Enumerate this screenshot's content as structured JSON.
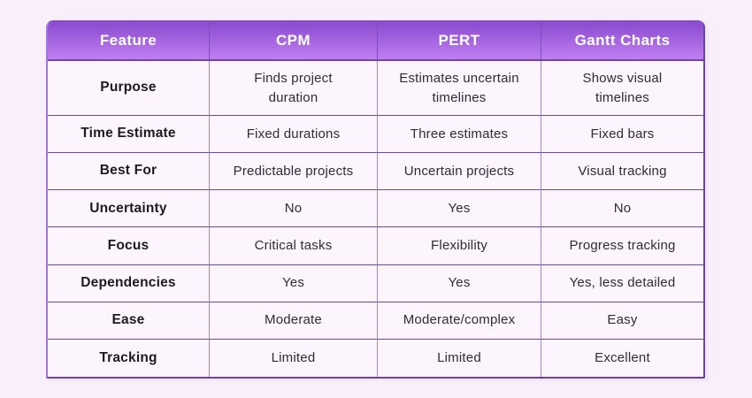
{
  "chart_data": {
    "type": "table",
    "columns": [
      "Feature",
      "CPM",
      "PERT",
      "Gantt Charts"
    ],
    "rows": [
      {
        "feature": "Purpose",
        "cpm": "Finds project\nduration",
        "pert": "Estimates uncertain\ntimelines",
        "gantt": "Shows visual\ntimelines"
      },
      {
        "feature": "Time Estimate",
        "cpm": "Fixed durations",
        "pert": "Three estimates",
        "gantt": "Fixed bars"
      },
      {
        "feature": "Best For",
        "cpm": "Predictable projects",
        "pert": "Uncertain projects",
        "gantt": "Visual tracking"
      },
      {
        "feature": "Uncertainty",
        "cpm": "No",
        "pert": "Yes",
        "gantt": "No"
      },
      {
        "feature": "Focus",
        "cpm": "Critical tasks",
        "pert": "Flexibility",
        "gantt": "Progress tracking"
      },
      {
        "feature": "Dependencies",
        "cpm": "Yes",
        "pert": "Yes",
        "gantt": "Yes, less detailed"
      },
      {
        "feature": "Ease",
        "cpm": "Moderate",
        "pert": "Moderate/complex",
        "gantt": "Easy"
      },
      {
        "feature": "Tracking",
        "cpm": "Limited",
        "pert": "Limited",
        "gantt": "Excellent"
      }
    ]
  },
  "colors": {
    "page_background": "#f8effb",
    "cell_background": "#fdf5fd",
    "header_gradient_top": "#8a4bd0",
    "header_gradient_bottom": "#c17ef0",
    "row_border": "#6f44ab",
    "column_border": "#a87fe2",
    "header_column_border": "#7b4ec0",
    "outer_border": "#6b42a8",
    "outer_border_light": "#a077dd",
    "header_text": "#ffffff",
    "body_text": "#2e2b35",
    "feature_text": "#1c1a22"
  }
}
